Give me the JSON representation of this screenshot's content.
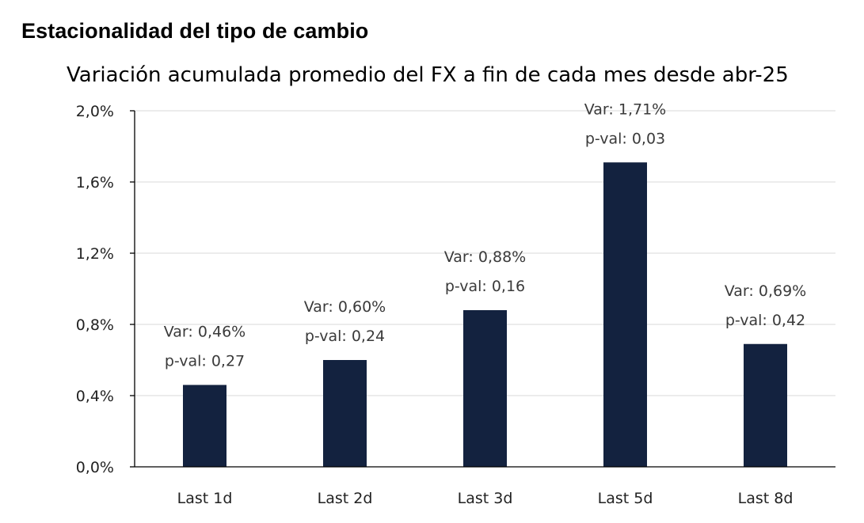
{
  "heading": "Estacionalidad del tipo de cambio",
  "chart_data": {
    "type": "bar",
    "title": "Variación acumulada promedio del FX a fin de cada mes desde abr-25",
    "categories": [
      "Last 1d",
      "Last 2d",
      "Last 3d",
      "Last 5d",
      "Last 8d"
    ],
    "values": [
      0.46,
      0.6,
      0.88,
      1.71,
      0.69
    ],
    "value_unit": "%",
    "data_labels": [
      [
        "Var: 0,46%",
        "p-val: 0,27"
      ],
      [
        "Var: 0,60%",
        "p-val: 0,24"
      ],
      [
        "Var: 0,88%",
        "p-val: 0,16"
      ],
      [
        "Var: 1,71%",
        "p-val: 0,03"
      ],
      [
        "Var: 0,69%",
        "p-val: 0,42"
      ]
    ],
    "yticks": [
      0,
      0.4,
      0.8,
      1.2,
      1.6,
      2.0
    ],
    "ytick_labels": [
      "0,0%",
      "0,4%",
      "0,8%",
      "1,2%",
      "1,6%",
      "2,0%"
    ],
    "ylim": [
      0,
      2.0
    ],
    "grid": true,
    "bar_color": "#13223f"
  }
}
